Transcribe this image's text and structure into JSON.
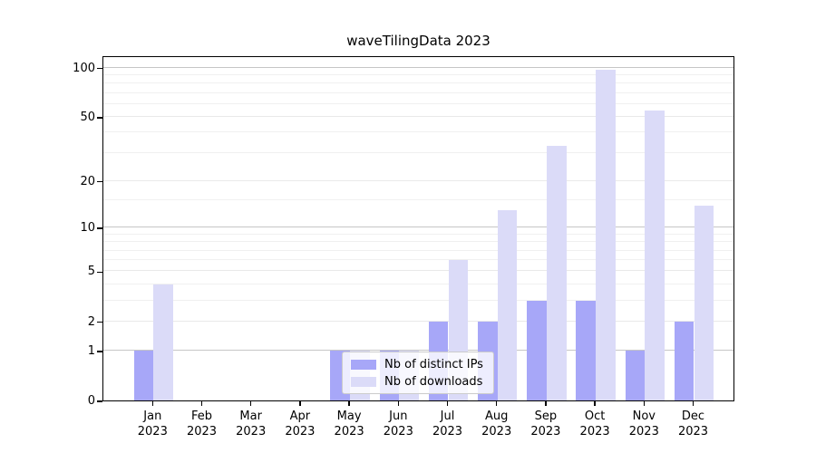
{
  "figure": {
    "title": "waveTilingData 2023",
    "background_color": "#ffffff",
    "axis_color": "#000000",
    "gridline_decade_color": "#c6c6c6",
    "gridline_major_color": "#e9e9e9",
    "gridline_minor_color": "#f0f0f0"
  },
  "chart_data": {
    "type": "bar",
    "title": "waveTilingData 2023",
    "xlabel": "",
    "ylabel": "",
    "categories": [
      "Jan 2023",
      "Feb 2023",
      "Mar 2023",
      "Apr 2023",
      "May 2023",
      "Jun 2023",
      "Jul 2023",
      "Aug 2023",
      "Sep 2023",
      "Oct 2023",
      "Nov 2023",
      "Dec 2023"
    ],
    "series": [
      {
        "name": "Nb of distinct IPs",
        "color": "#a7a7f8",
        "values": [
          1,
          0,
          0,
          0,
          1,
          1,
          2,
          2,
          3,
          3,
          1,
          2
        ]
      },
      {
        "name": "Nb of downloads",
        "color": "#dbdbf8",
        "values": [
          4,
          0,
          0,
          0,
          1,
          1,
          6,
          13,
          33,
          97,
          55,
          14
        ]
      }
    ],
    "y_scale": "log1p",
    "y_ticks": [
      0,
      1,
      2,
      5,
      10,
      20,
      50,
      100
    ],
    "y_minor_ticks": [
      3,
      4,
      6,
      7,
      8,
      9,
      15,
      30,
      40,
      60,
      70,
      80,
      90
    ],
    "ylim": [
      0,
      119
    ],
    "grid": true,
    "legend_position": "lower center"
  }
}
